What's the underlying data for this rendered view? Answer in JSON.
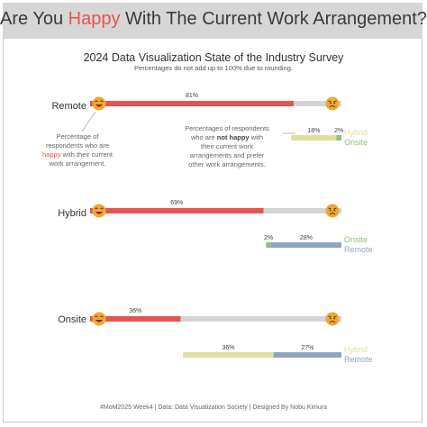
{
  "title": {
    "pre": "Are You ",
    "highlight": "Happy",
    "post": " With The Current Work Arrangement?"
  },
  "subtitle": "2024 Data Visualization State of the Industry Survey",
  "note": "Percentages do not add up to 100% due to rounding.",
  "annotations": {
    "happy": {
      "l1": "Percentage of",
      "l2": "respondents who are",
      "l3a": "happy",
      "l3b": " with their current",
      "l4": "work arrangement."
    },
    "not_happy": {
      "l1": "Percentages of respondents",
      "l2a": "who are ",
      "l2b": "not happy",
      "l2c": " with",
      "l3": "their current work",
      "l4": "arrangements and prefer",
      "l5": "other work arrangements."
    }
  },
  "footer": "#MoM2025 Week4 | Data: Data Visualization Society | Designed By Nobu Kimura",
  "colors": {
    "happy": "#e8534f",
    "track": "#d4d4d4",
    "hybrid": "#dedea0",
    "onsite": "#8fc27d",
    "remote": "#8ea4c4",
    "emoji": "#f0a830"
  },
  "chart_data": {
    "type": "bar",
    "title": "2024 Data Visualization State of the Industry Survey",
    "categories": [
      "Remote",
      "Hybrid",
      "Onsite"
    ],
    "series": [
      {
        "name": "happy",
        "values": [
          81,
          69,
          36
        ]
      }
    ],
    "preferred_alternatives": [
      {
        "current": "Remote",
        "items": [
          {
            "name": "Hybrid",
            "value": 18
          },
          {
            "name": "Onsite",
            "value": 2
          }
        ]
      },
      {
        "current": "Hybrid",
        "items": [
          {
            "name": "Onsite",
            "value": 2
          },
          {
            "name": "Remote",
            "value": 28
          }
        ]
      },
      {
        "current": "Onsite",
        "items": [
          {
            "name": "Hybrid",
            "value": 36
          },
          {
            "name": "Remote",
            "value": 27
          }
        ]
      }
    ],
    "xlim": [
      0,
      100
    ]
  }
}
